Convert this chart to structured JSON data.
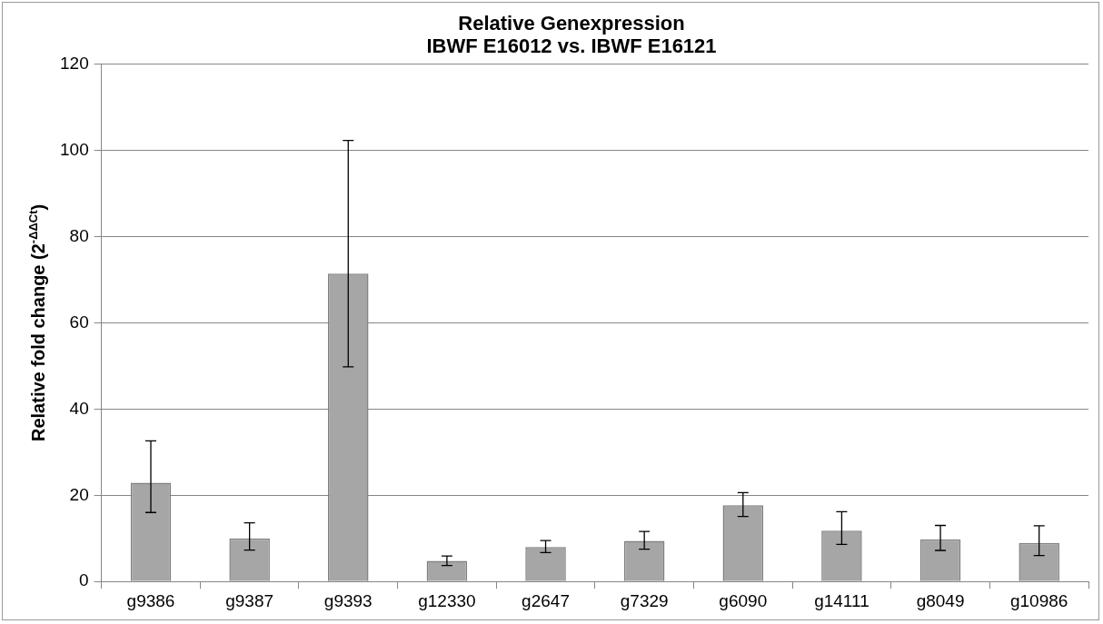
{
  "chart_data": {
    "type": "bar",
    "title": "Relative Genexpression\nIBWF E16012 vs. IBWF E16121",
    "ylabel": "Relative fold change (2$^{-ΔΔCt}$)",
    "categories": [
      "g9386",
      "g9387",
      "g9393",
      "g12330",
      "g2647",
      "g7329",
      "g6090",
      "g14111",
      "g8049",
      "g10986"
    ],
    "values": [
      22.9,
      10.0,
      71.4,
      4.8,
      8.0,
      9.4,
      17.7,
      11.8,
      9.8,
      8.9
    ],
    "errors": [
      [
        16.0,
        32.6
      ],
      [
        7.3,
        13.6
      ],
      [
        49.8,
        102.3
      ],
      [
        3.7,
        5.9
      ],
      [
        6.7,
        9.5
      ],
      [
        7.5,
        11.6
      ],
      [
        15.1,
        20.6
      ],
      [
        8.6,
        16.2
      ],
      [
        7.2,
        13.0
      ],
      [
        6.0,
        12.9
      ]
    ],
    "color": "#a6a6a6",
    "ylim": [
      0,
      120
    ],
    "yticks": [
      0,
      20,
      40,
      60,
      80,
      100,
      120
    ],
    "grid": "y",
    "legend": false
  }
}
